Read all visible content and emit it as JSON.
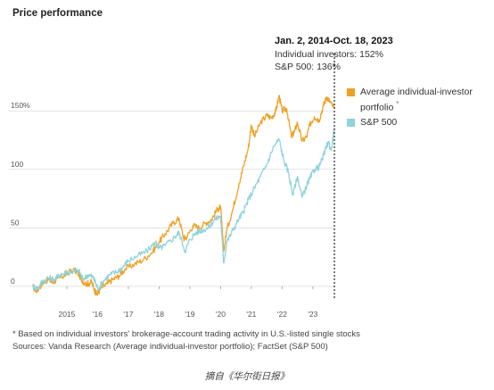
{
  "chart_data": {
    "type": "line",
    "title": "Price performance",
    "x_ticks": [
      "2015",
      "'16",
      "'17",
      "'18",
      "'19",
      "'20",
      "'21",
      "'22",
      "'23"
    ],
    "y_ticks": [
      {
        "value": 0,
        "label": "0"
      },
      {
        "value": 50,
        "label": "50"
      },
      {
        "value": 100,
        "label": "100"
      },
      {
        "value": 150,
        "label": "150%"
      }
    ],
    "xlim": [
      "2014-01-02",
      "2023-10-18"
    ],
    "ylim": [
      -10,
      170
    ],
    "annotation": {
      "date_range": "Jan. 2, 2014-Oct. 18, 2023",
      "line1": "Individual investors: 152%",
      "line2": "S&P 500: 136%"
    },
    "series": [
      {
        "name": "Average individual-investor portfolio",
        "legend_line1": "Average individual-investor",
        "legend_line2": "portfolio",
        "legend_mark": "*",
        "color": "#f0a024",
        "points": [
          [
            2014.0,
            0
          ],
          [
            2014.1,
            -4
          ],
          [
            2014.2,
            -1
          ],
          [
            2014.35,
            4
          ],
          [
            2014.5,
            6
          ],
          [
            2014.65,
            3
          ],
          [
            2014.8,
            7
          ],
          [
            2015.0,
            9
          ],
          [
            2015.15,
            12
          ],
          [
            2015.35,
            14
          ],
          [
            2015.5,
            10
          ],
          [
            2015.6,
            5
          ],
          [
            2015.75,
            2
          ],
          [
            2015.9,
            4
          ],
          [
            2016.0,
            -3
          ],
          [
            2016.08,
            -7
          ],
          [
            2016.2,
            -2
          ],
          [
            2016.4,
            2
          ],
          [
            2016.6,
            6
          ],
          [
            2016.8,
            9
          ],
          [
            2017.0,
            15
          ],
          [
            2017.3,
            19
          ],
          [
            2017.6,
            23
          ],
          [
            2017.9,
            30
          ],
          [
            2018.1,
            38
          ],
          [
            2018.3,
            45
          ],
          [
            2018.55,
            54
          ],
          [
            2018.75,
            58
          ],
          [
            2018.9,
            41
          ],
          [
            2019.0,
            42
          ],
          [
            2019.2,
            52
          ],
          [
            2019.4,
            50
          ],
          [
            2019.6,
            54
          ],
          [
            2019.8,
            57
          ],
          [
            2020.0,
            66
          ],
          [
            2020.1,
            68
          ],
          [
            2020.2,
            30
          ],
          [
            2020.3,
            48
          ],
          [
            2020.5,
            66
          ],
          [
            2020.7,
            88
          ],
          [
            2020.85,
            103
          ],
          [
            2021.0,
            118
          ],
          [
            2021.1,
            138
          ],
          [
            2021.2,
            128
          ],
          [
            2021.4,
            140
          ],
          [
            2021.6,
            146
          ],
          [
            2021.75,
            144
          ],
          [
            2021.9,
            150
          ],
          [
            2022.0,
            163
          ],
          [
            2022.1,
            150
          ],
          [
            2022.25,
            152
          ],
          [
            2022.4,
            128
          ],
          [
            2022.5,
            132
          ],
          [
            2022.6,
            140
          ],
          [
            2022.75,
            124
          ],
          [
            2022.9,
            128
          ],
          [
            2023.0,
            138
          ],
          [
            2023.15,
            145
          ],
          [
            2023.3,
            142
          ],
          [
            2023.45,
            155
          ],
          [
            2023.55,
            162
          ],
          [
            2023.65,
            158
          ],
          [
            2023.8,
            152
          ]
        ]
      },
      {
        "name": "S&P 500",
        "legend_line1": "S&P 500",
        "color": "#8fd3dc",
        "points": [
          [
            2014.0,
            0
          ],
          [
            2014.15,
            -2
          ],
          [
            2014.3,
            4
          ],
          [
            2014.5,
            7
          ],
          [
            2014.7,
            6
          ],
          [
            2014.9,
            10
          ],
          [
            2015.1,
            12
          ],
          [
            2015.3,
            13
          ],
          [
            2015.5,
            13
          ],
          [
            2015.62,
            6
          ],
          [
            2015.8,
            10
          ],
          [
            2015.95,
            8
          ],
          [
            2016.05,
            2
          ],
          [
            2016.12,
            -2
          ],
          [
            2016.3,
            5
          ],
          [
            2016.5,
            10
          ],
          [
            2016.7,
            12
          ],
          [
            2016.9,
            16
          ],
          [
            2017.1,
            22
          ],
          [
            2017.4,
            26
          ],
          [
            2017.7,
            30
          ],
          [
            2018.0,
            38
          ],
          [
            2018.08,
            32
          ],
          [
            2018.3,
            35
          ],
          [
            2018.6,
            42
          ],
          [
            2018.75,
            46
          ],
          [
            2018.95,
            30
          ],
          [
            2019.1,
            40
          ],
          [
            2019.3,
            46
          ],
          [
            2019.5,
            48
          ],
          [
            2019.7,
            50
          ],
          [
            2019.9,
            57
          ],
          [
            2020.1,
            60
          ],
          [
            2020.2,
            20
          ],
          [
            2020.3,
            38
          ],
          [
            2020.5,
            48
          ],
          [
            2020.7,
            58
          ],
          [
            2020.85,
            64
          ],
          [
            2021.0,
            74
          ],
          [
            2021.2,
            84
          ],
          [
            2021.4,
            94
          ],
          [
            2021.6,
            104
          ],
          [
            2021.8,
            118
          ],
          [
            2022.0,
            126
          ],
          [
            2022.15,
            108
          ],
          [
            2022.3,
            98
          ],
          [
            2022.45,
            78
          ],
          [
            2022.6,
            94
          ],
          [
            2022.75,
            76
          ],
          [
            2022.9,
            86
          ],
          [
            2023.0,
            92
          ],
          [
            2023.15,
            100
          ],
          [
            2023.3,
            102
          ],
          [
            2023.45,
            112
          ],
          [
            2023.6,
            124
          ],
          [
            2023.7,
            116
          ],
          [
            2023.8,
            136
          ]
        ]
      }
    ],
    "grid": "horizontal",
    "legend_position": "right"
  },
  "footnotes": {
    "note": "* Based on individual investors' brokerage-account trading activity in U.S.-listed single stocks",
    "sources": "Sources: Vanda Research (Average individual-investor portfolio); FactSet (S&P 500)"
  },
  "credit": "摘自《华尔街日报》"
}
